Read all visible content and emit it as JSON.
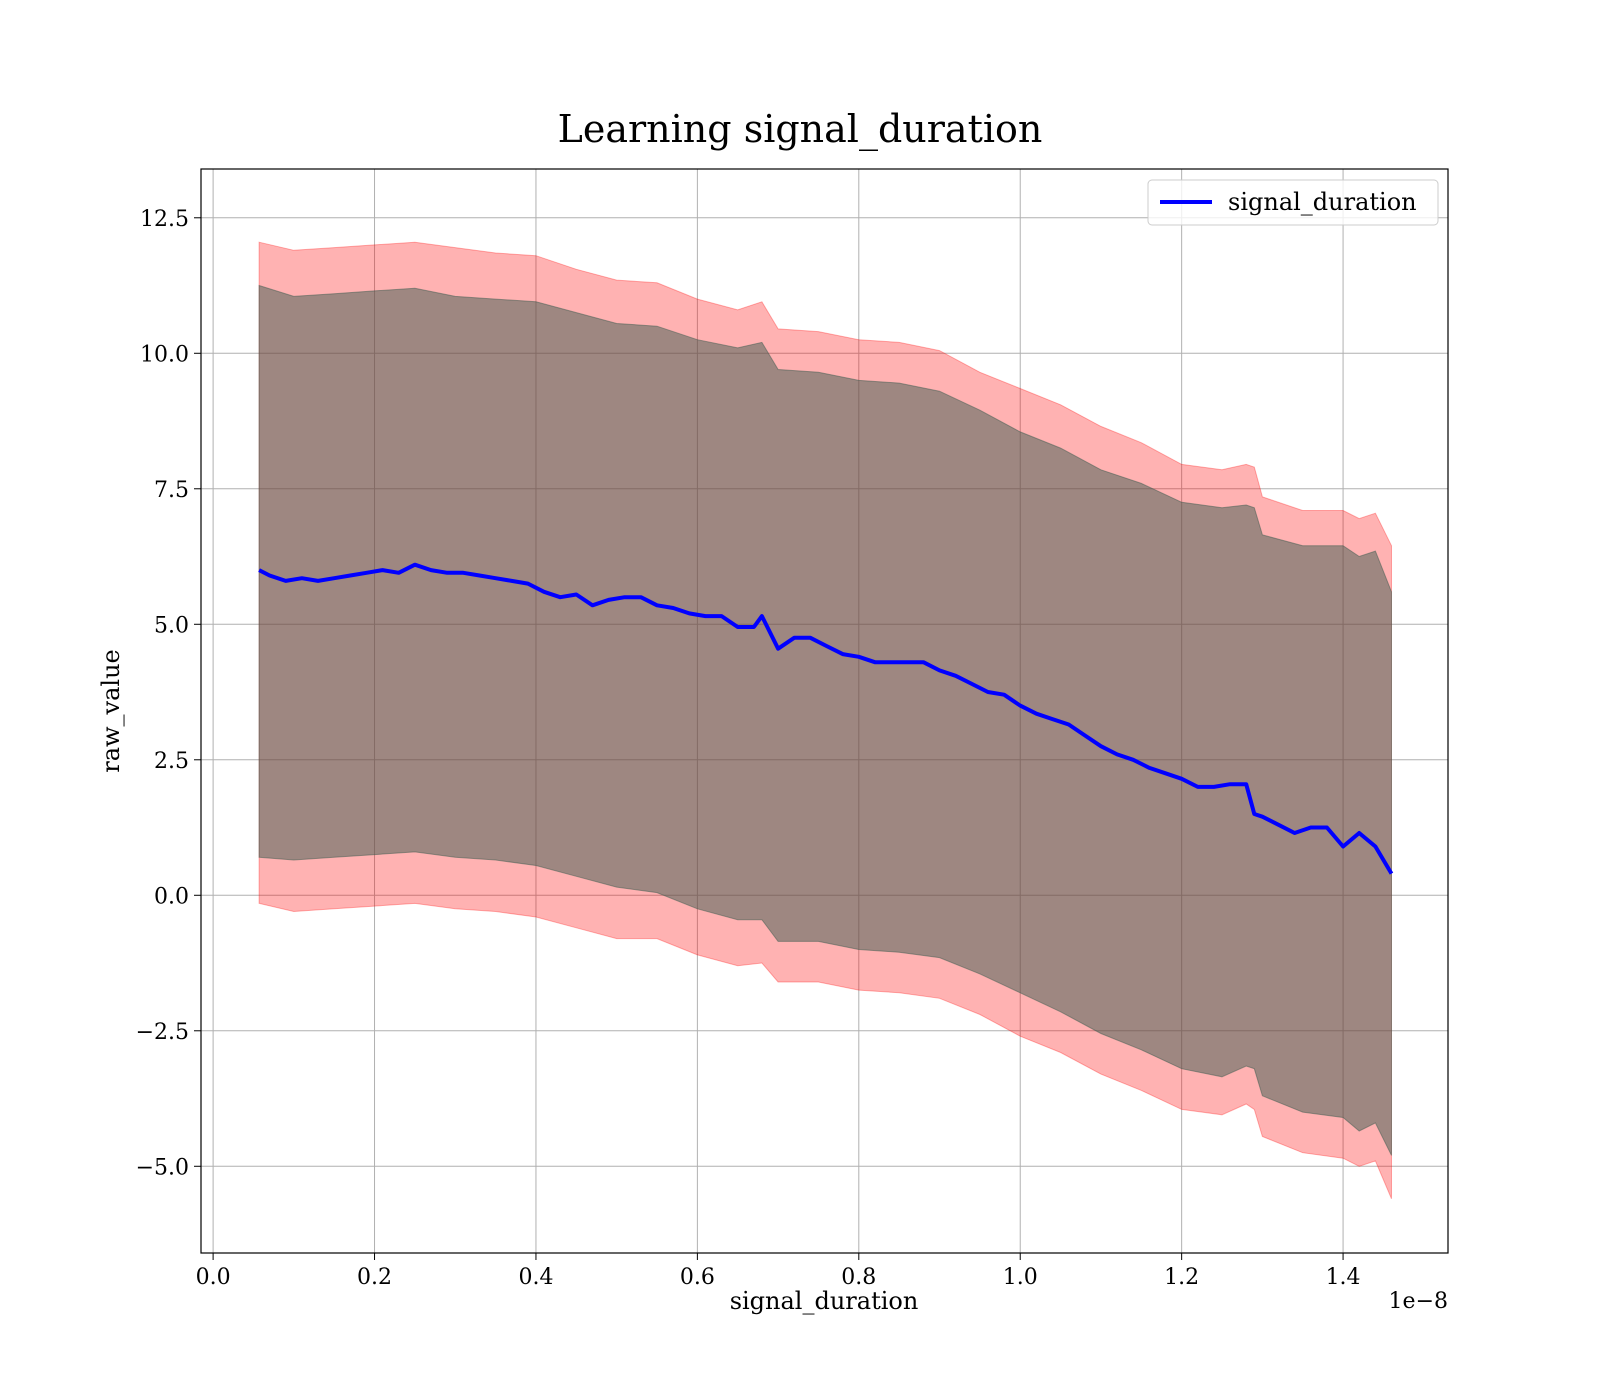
{
  "chart_data": {
    "type": "line",
    "title": "Learning signal_duration",
    "xlabel": "signal_duration",
    "ylabel": "raw_value",
    "x_offset_text": "1e−8",
    "xlim": [
      -0.015,
      1.53
    ],
    "ylim": [
      -6.6,
      13.4
    ],
    "grid": true,
    "legend_position": "upper-right",
    "x_ticks": [
      {
        "value": 0.0,
        "label": "0.0"
      },
      {
        "value": 0.2,
        "label": "0.2"
      },
      {
        "value": 0.4,
        "label": "0.4"
      },
      {
        "value": 0.6,
        "label": "0.6"
      },
      {
        "value": 0.8,
        "label": "0.8"
      },
      {
        "value": 1.0,
        "label": "1.0"
      },
      {
        "value": 1.2,
        "label": "1.2"
      },
      {
        "value": 1.4,
        "label": "1.4"
      }
    ],
    "y_ticks": [
      {
        "value": 12.5,
        "label": "12.5"
      },
      {
        "value": 10.0,
        "label": "10.0"
      },
      {
        "value": 7.5,
        "label": "7.5"
      },
      {
        "value": 5.0,
        "label": "5.0"
      },
      {
        "value": 2.5,
        "label": "2.5"
      },
      {
        "value": 0.0,
        "label": "0.0"
      },
      {
        "value": -2.5,
        "label": "−2.5"
      },
      {
        "value": -5.0,
        "label": "−5.0"
      }
    ],
    "series": [
      {
        "name": "signal_duration",
        "color": "#0000ff",
        "x": [
          0.057,
          0.07,
          0.09,
          0.11,
          0.13,
          0.15,
          0.17,
          0.19,
          0.21,
          0.23,
          0.25,
          0.27,
          0.29,
          0.31,
          0.33,
          0.35,
          0.37,
          0.39,
          0.41,
          0.43,
          0.45,
          0.47,
          0.49,
          0.51,
          0.53,
          0.55,
          0.57,
          0.59,
          0.61,
          0.63,
          0.65,
          0.67,
          0.68,
          0.69,
          0.7,
          0.72,
          0.74,
          0.76,
          0.78,
          0.8,
          0.82,
          0.84,
          0.86,
          0.88,
          0.9,
          0.92,
          0.94,
          0.96,
          0.98,
          1.0,
          1.02,
          1.04,
          1.06,
          1.08,
          1.1,
          1.12,
          1.14,
          1.16,
          1.18,
          1.2,
          1.22,
          1.24,
          1.26,
          1.28,
          1.29,
          1.3,
          1.32,
          1.34,
          1.36,
          1.38,
          1.4,
          1.42,
          1.44,
          1.46
        ],
        "y": [
          6.0,
          5.9,
          5.8,
          5.85,
          5.8,
          5.85,
          5.9,
          5.95,
          6.0,
          5.95,
          6.1,
          6.0,
          5.95,
          5.95,
          5.9,
          5.85,
          5.8,
          5.75,
          5.6,
          5.5,
          5.55,
          5.35,
          5.45,
          5.5,
          5.5,
          5.35,
          5.3,
          5.2,
          5.15,
          5.15,
          4.95,
          4.95,
          5.15,
          4.85,
          4.55,
          4.75,
          4.75,
          4.6,
          4.45,
          4.4,
          4.3,
          4.3,
          4.3,
          4.3,
          4.15,
          4.05,
          3.9,
          3.75,
          3.7,
          3.5,
          3.35,
          3.25,
          3.15,
          2.95,
          2.75,
          2.6,
          2.5,
          2.35,
          2.25,
          2.15,
          2.0,
          2.0,
          2.05,
          2.05,
          1.5,
          1.45,
          1.3,
          1.15,
          1.25,
          1.25,
          0.9,
          1.15,
          0.9,
          0.4
        ]
      }
    ],
    "bands": [
      {
        "name": "outer",
        "color": "#ff0000",
        "opacity": 0.3,
        "x": [
          0.057,
          0.1,
          0.15,
          0.2,
          0.25,
          0.3,
          0.35,
          0.4,
          0.45,
          0.5,
          0.55,
          0.6,
          0.65,
          0.68,
          0.7,
          0.75,
          0.8,
          0.85,
          0.9,
          0.95,
          1.0,
          1.05,
          1.1,
          1.15,
          1.2,
          1.25,
          1.28,
          1.29,
          1.3,
          1.35,
          1.4,
          1.42,
          1.44,
          1.46
        ],
        "upper": [
          12.05,
          11.9,
          11.95,
          12.0,
          12.05,
          11.95,
          11.85,
          11.8,
          11.55,
          11.35,
          11.3,
          11.0,
          10.8,
          10.95,
          10.45,
          10.4,
          10.25,
          10.2,
          10.05,
          9.65,
          9.35,
          9.05,
          8.65,
          8.35,
          7.95,
          7.85,
          7.95,
          7.9,
          7.35,
          7.1,
          7.1,
          6.95,
          7.05,
          6.45
        ],
        "lower": [
          -0.15,
          -0.3,
          -0.25,
          -0.2,
          -0.15,
          -0.25,
          -0.3,
          -0.4,
          -0.6,
          -0.8,
          -0.8,
          -1.1,
          -1.3,
          -1.25,
          -1.6,
          -1.6,
          -1.75,
          -1.8,
          -1.9,
          -2.2,
          -2.6,
          -2.9,
          -3.3,
          -3.6,
          -3.95,
          -4.05,
          -3.85,
          -3.95,
          -4.45,
          -4.75,
          -4.85,
          -5.0,
          -4.9,
          -5.6
        ]
      },
      {
        "name": "inner",
        "color": "#3d5b4f",
        "opacity": 0.5,
        "x": [
          0.057,
          0.1,
          0.15,
          0.2,
          0.25,
          0.3,
          0.35,
          0.4,
          0.45,
          0.5,
          0.55,
          0.6,
          0.65,
          0.68,
          0.7,
          0.75,
          0.8,
          0.85,
          0.9,
          0.95,
          1.0,
          1.05,
          1.1,
          1.15,
          1.2,
          1.25,
          1.28,
          1.29,
          1.3,
          1.35,
          1.4,
          1.42,
          1.44,
          1.46
        ],
        "upper": [
          11.25,
          11.05,
          11.1,
          11.15,
          11.2,
          11.05,
          11.0,
          10.95,
          10.75,
          10.55,
          10.5,
          10.25,
          10.1,
          10.2,
          9.7,
          9.65,
          9.5,
          9.45,
          9.3,
          8.95,
          8.55,
          8.25,
          7.85,
          7.6,
          7.25,
          7.15,
          7.2,
          7.15,
          6.65,
          6.45,
          6.45,
          6.25,
          6.35,
          5.6
        ],
        "lower": [
          0.7,
          0.65,
          0.7,
          0.75,
          0.8,
          0.7,
          0.65,
          0.55,
          0.35,
          0.15,
          0.05,
          -0.25,
          -0.45,
          -0.45,
          -0.85,
          -0.85,
          -1.0,
          -1.05,
          -1.15,
          -1.45,
          -1.8,
          -2.15,
          -2.55,
          -2.85,
          -3.2,
          -3.35,
          -3.15,
          -3.2,
          -3.7,
          -4.0,
          -4.1,
          -4.35,
          -4.2,
          -4.8
        ]
      }
    ]
  }
}
